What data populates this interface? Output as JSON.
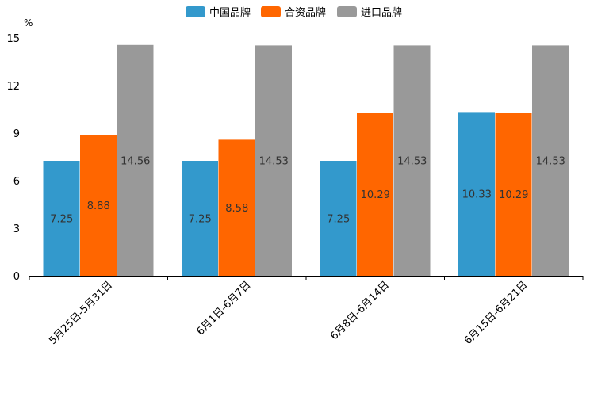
{
  "chart_data": {
    "type": "bar",
    "title": "",
    "xlabel": "",
    "ylabel": "%",
    "ylim": [
      0,
      15
    ],
    "yticks": [
      0,
      3,
      6,
      9,
      12,
      15
    ],
    "grid": false,
    "legend_position": "top-center",
    "categories": [
      "5月25日-5月31日",
      "6月1日-6月7日",
      "6月8日-6月14日",
      "6月15日-6月21日"
    ],
    "series": [
      {
        "name": "中国品牌",
        "color": "#3399cc",
        "values": [
          7.25,
          7.25,
          7.25,
          10.33
        ]
      },
      {
        "name": "合资品牌",
        "color": "#ff6600",
        "values": [
          8.88,
          8.58,
          10.29,
          10.29
        ]
      },
      {
        "name": "进口品牌",
        "color": "#999999",
        "values": [
          14.56,
          14.53,
          14.53,
          14.53
        ]
      }
    ]
  }
}
